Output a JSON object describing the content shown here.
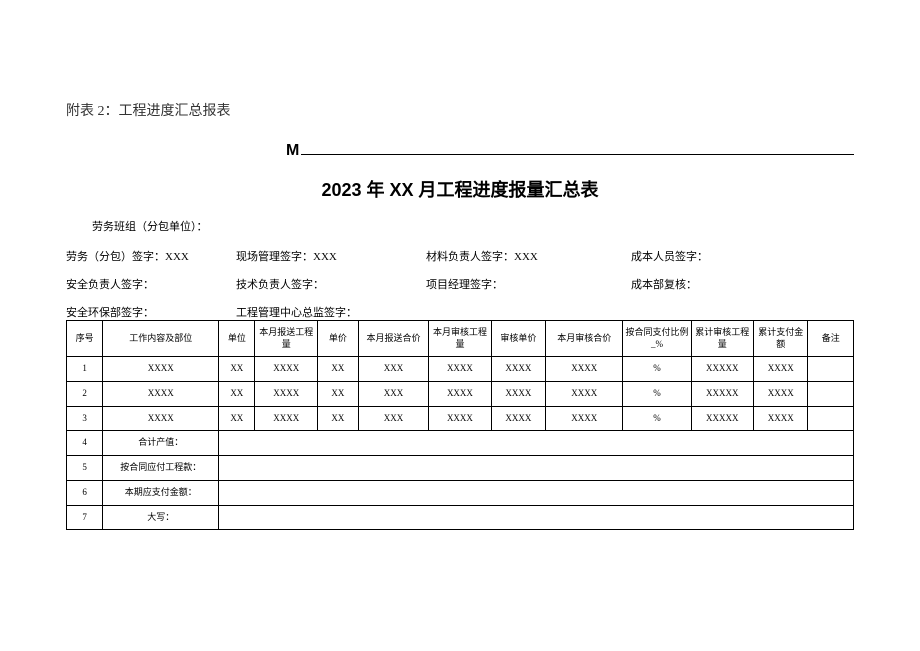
{
  "header_note": "附表 2：工程进度汇总报表",
  "m_label": "M",
  "main_title": "2023 年 XX 月工程进度报量汇总表",
  "sub_line": "劳务班组（分包单位）：",
  "sig": {
    "r1c1": "劳务（分包）签字：XXX",
    "r1c2": "现场管理签字：XXX",
    "r1c3": "材料负责人签字：XXX",
    "r1c4": "成本人员签字：",
    "r2c1": "安全负责人签字：",
    "r2c2": "技术负责人签字：",
    "r2c3": "项目经理签字：",
    "r2c4": "成本部复核：",
    "r3c1": "安全环保部签字：",
    "r3c2": "工程管理中心总监签字："
  },
  "table": {
    "headers": {
      "seq": "序号",
      "content": "工作内容及部位",
      "unit": "单位",
      "qty": "本月报送工程量",
      "price": "单价",
      "total": "本月报送合价",
      "audit_qty": "本月审核工程量",
      "audit_price": "审核单价",
      "audit_total": "本月审核合价",
      "ratio": "按合同支付比例_%",
      "cum_qty": "累计审核工程量",
      "cum_amt": "累计支付金额",
      "remark": "备注"
    },
    "rows": [
      {
        "seq": "1",
        "content": "XXXX",
        "unit": "XX",
        "qty": "XXXX",
        "price": "XX",
        "total": "XXX",
        "audit_qty": "XXXX",
        "audit_price": "XXXX",
        "audit_total": "XXXX",
        "ratio": "%",
        "cum_qty": "XXXXX",
        "cum_amt": "XXXX",
        "remark": ""
      },
      {
        "seq": "2",
        "content": "XXXX",
        "unit": "XX",
        "qty": "XXXX",
        "price": "XX",
        "total": "XXX",
        "audit_qty": "XXXX",
        "audit_price": "XXXX",
        "audit_total": "XXXX",
        "ratio": "%",
        "cum_qty": "XXXXX",
        "cum_amt": "XXXX",
        "remark": ""
      },
      {
        "seq": "3",
        "content": "XXXX",
        "unit": "XX",
        "qty": "XXXX",
        "price": "XX",
        "total": "XXX",
        "audit_qty": "XXXX",
        "audit_price": "XXXX",
        "audit_total": "XXXX",
        "ratio": "%",
        "cum_qty": "XXXXX",
        "cum_amt": "XXXX",
        "remark": ""
      }
    ],
    "summary": [
      {
        "seq": "4",
        "label": "合计产值："
      },
      {
        "seq": "5",
        "label": "按合同应付工程款："
      },
      {
        "seq": "6",
        "label": "本期应支付金额："
      },
      {
        "seq": "7",
        "label": "大写："
      }
    ]
  },
  "colors": {
    "bg": "#ffffff",
    "text": "#000000",
    "border": "#000000",
    "header_note_color": "#333333"
  }
}
